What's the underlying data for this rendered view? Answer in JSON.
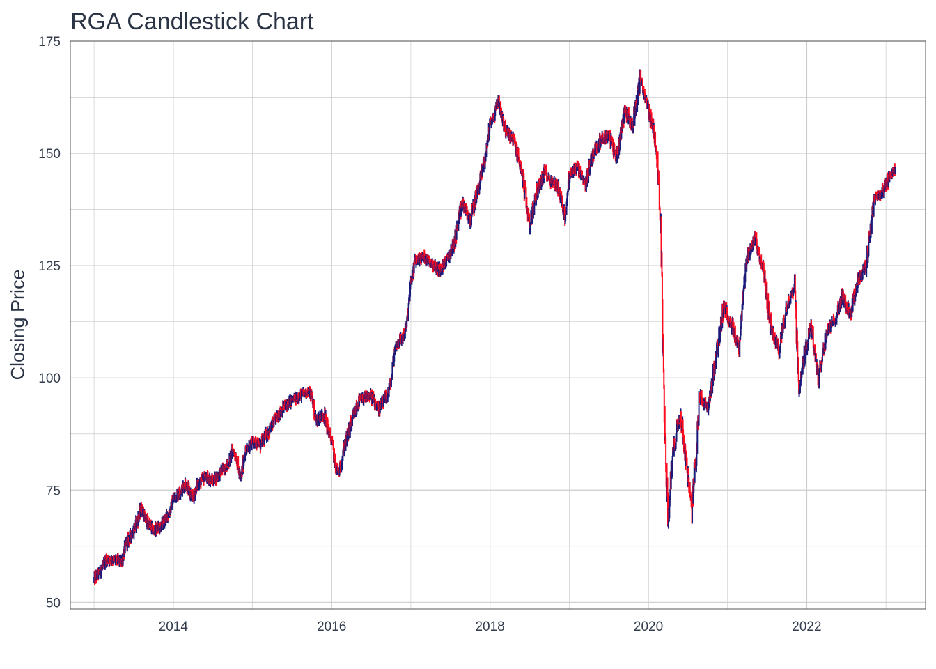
{
  "chart_data": {
    "type": "candlestick",
    "title": "RGA Candlestick Chart",
    "xlabel": "",
    "ylabel": "Closing Price",
    "x_ticks": [
      "2014",
      "2016",
      "2018",
      "2020",
      "2022"
    ],
    "y_ticks": [
      "50",
      "75",
      "100",
      "125",
      "150",
      "175"
    ],
    "xlim": [
      2012.7,
      2023.5
    ],
    "ylim": [
      48.5,
      175
    ],
    "grid": true,
    "legend": "none",
    "colors": {
      "up": "#1a1a7a",
      "down": "#ff0a1e",
      "grid": "#cccccc",
      "axis": "#555555",
      "text": "#2b3445"
    },
    "series": [
      {
        "points": [
          [
            2013.0,
            55.0
          ],
          [
            2013.1,
            57.5
          ],
          [
            2013.15,
            59.5
          ],
          [
            2013.25,
            59.5
          ],
          [
            2013.35,
            59.0
          ],
          [
            2013.4,
            63.0
          ],
          [
            2013.5,
            66.0
          ],
          [
            2013.6,
            71.0
          ],
          [
            2013.65,
            68.5
          ],
          [
            2013.75,
            66.0
          ],
          [
            2013.85,
            67.0
          ],
          [
            2013.95,
            70.0
          ],
          [
            2014.0,
            73.0
          ],
          [
            2014.1,
            75.0
          ],
          [
            2014.15,
            76.5
          ],
          [
            2014.25,
            73.0
          ],
          [
            2014.3,
            76.0
          ],
          [
            2014.4,
            78.0
          ],
          [
            2014.5,
            77.0
          ],
          [
            2014.6,
            79.0
          ],
          [
            2014.7,
            81.0
          ],
          [
            2014.75,
            84.0
          ],
          [
            2014.8,
            82.0
          ],
          [
            2014.85,
            77.0
          ],
          [
            2014.9,
            83.0
          ],
          [
            2015.0,
            86.0
          ],
          [
            2015.1,
            85.0
          ],
          [
            2015.2,
            88.0
          ],
          [
            2015.3,
            91.0
          ],
          [
            2015.4,
            93.5
          ],
          [
            2015.5,
            95.0
          ],
          [
            2015.6,
            96.0
          ],
          [
            2015.7,
            97.0
          ],
          [
            2015.75,
            96.0
          ],
          [
            2015.8,
            90.5
          ],
          [
            2015.9,
            92.0
          ],
          [
            2016.0,
            86.0
          ],
          [
            2016.05,
            80.0
          ],
          [
            2016.1,
            79.0
          ],
          [
            2016.15,
            84.0
          ],
          [
            2016.25,
            90.0
          ],
          [
            2016.35,
            95.0
          ],
          [
            2016.5,
            96.0
          ],
          [
            2016.6,
            93.0
          ],
          [
            2016.7,
            96.0
          ],
          [
            2016.75,
            99.0
          ],
          [
            2016.8,
            107.0
          ],
          [
            2016.9,
            109.0
          ],
          [
            2016.95,
            112.0
          ],
          [
            2017.0,
            121.0
          ],
          [
            2017.05,
            126.0
          ],
          [
            2017.15,
            127.0
          ],
          [
            2017.25,
            126.0
          ],
          [
            2017.35,
            124.0
          ],
          [
            2017.45,
            126.0
          ],
          [
            2017.55,
            130.0
          ],
          [
            2017.65,
            139.0
          ],
          [
            2017.75,
            135.0
          ],
          [
            2017.85,
            142.0
          ],
          [
            2017.95,
            150.0
          ],
          [
            2018.0,
            157.0
          ],
          [
            2018.05,
            158.0
          ],
          [
            2018.1,
            162.0
          ],
          [
            2018.2,
            155.0
          ],
          [
            2018.3,
            153.0
          ],
          [
            2018.4,
            146.0
          ],
          [
            2018.5,
            134.0
          ],
          [
            2018.6,
            142.0
          ],
          [
            2018.7,
            146.0
          ],
          [
            2018.75,
            144.0
          ],
          [
            2018.85,
            143.0
          ],
          [
            2018.95,
            136.0
          ],
          [
            2019.0,
            145.0
          ],
          [
            2019.1,
            147.0
          ],
          [
            2019.2,
            143.0
          ],
          [
            2019.3,
            150.0
          ],
          [
            2019.4,
            153.0
          ],
          [
            2019.5,
            154.0
          ],
          [
            2019.6,
            149.0
          ],
          [
            2019.7,
            160.0
          ],
          [
            2019.8,
            156.0
          ],
          [
            2019.9,
            167.0
          ],
          [
            2019.95,
            163.0
          ],
          [
            2020.0,
            160.0
          ],
          [
            2020.1,
            152.0
          ],
          [
            2020.15,
            137.0
          ],
          [
            2020.2,
            92.0
          ],
          [
            2020.25,
            68.0
          ],
          [
            2020.3,
            82.0
          ],
          [
            2020.4,
            93.0
          ],
          [
            2020.5,
            78.0
          ],
          [
            2020.55,
            70.0
          ],
          [
            2020.65,
            96.0
          ],
          [
            2020.75,
            93.0
          ],
          [
            2020.85,
            104.0
          ],
          [
            2020.95,
            116.0
          ],
          [
            2021.05,
            112.0
          ],
          [
            2021.15,
            106.0
          ],
          [
            2021.2,
            119.0
          ],
          [
            2021.25,
            127.0
          ],
          [
            2021.35,
            131.0
          ],
          [
            2021.45,
            124.0
          ],
          [
            2021.55,
            111.0
          ],
          [
            2021.65,
            106.0
          ],
          [
            2021.75,
            116.0
          ],
          [
            2021.85,
            121.0
          ],
          [
            2021.9,
            97.0
          ],
          [
            2021.95,
            103.0
          ],
          [
            2022.05,
            112.0
          ],
          [
            2022.15,
            100.0
          ],
          [
            2022.25,
            110.0
          ],
          [
            2022.35,
            113.0
          ],
          [
            2022.45,
            118.0
          ],
          [
            2022.55,
            114.0
          ],
          [
            2022.65,
            122.0
          ],
          [
            2022.75,
            125.0
          ],
          [
            2022.85,
            140.0
          ],
          [
            2022.95,
            141.0
          ],
          [
            2023.05,
            145.0
          ],
          [
            2023.12,
            147.0
          ]
        ]
      }
    ]
  }
}
